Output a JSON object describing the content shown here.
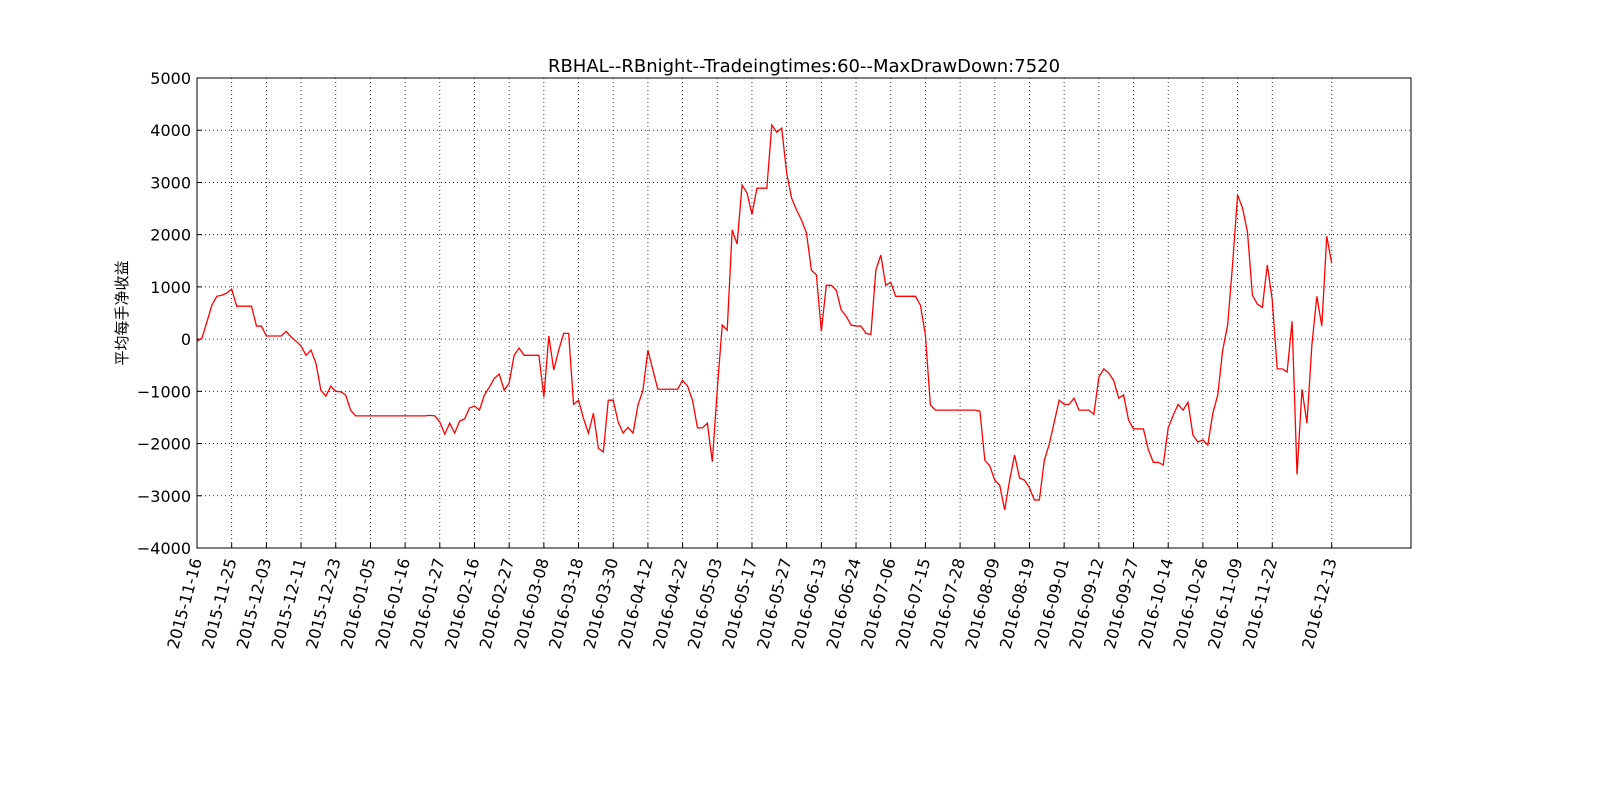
{
  "chart_data": {
    "type": "line",
    "title": "RBHAL--RBnight--Tradeingtimes:60--MaxDrawDown:7520",
    "ylabel": "平均每手净收益",
    "color": "#ff0000",
    "grid": true,
    "x": [
      0,
      1,
      2,
      3,
      4,
      5,
      6,
      7,
      8,
      9,
      10,
      11,
      12,
      13,
      14,
      15,
      16,
      17,
      18,
      19,
      20,
      21,
      22,
      23,
      24,
      25,
      26,
      27,
      28,
      29,
      30,
      31,
      32,
      33,
      34,
      35,
      36,
      37,
      38,
      39,
      40,
      41,
      42,
      43,
      44,
      45,
      46,
      47,
      48,
      49,
      50,
      51,
      52,
      53,
      54,
      55,
      56,
      57,
      58,
      59,
      60,
      61,
      62,
      63,
      64,
      65,
      66,
      67,
      68,
      69,
      70,
      71,
      72,
      73,
      74,
      75,
      76,
      77,
      78,
      79,
      80,
      81,
      82,
      83,
      84,
      85,
      86,
      87,
      88,
      89,
      90,
      91,
      92,
      93,
      94,
      95,
      96,
      97,
      98,
      99,
      100,
      101,
      102,
      103,
      104,
      105,
      106,
      107,
      108,
      109,
      110,
      111,
      112,
      113,
      114,
      115,
      116,
      117,
      118,
      119,
      120,
      121,
      122,
      123,
      124,
      125,
      126,
      127,
      128,
      129,
      130,
      131,
      132,
      133,
      134,
      135,
      136,
      137,
      138,
      139,
      140,
      141,
      142,
      143,
      144,
      145,
      146,
      147,
      148,
      149,
      150,
      151,
      152,
      153,
      154,
      155,
      156,
      157,
      158,
      159,
      160,
      161,
      162,
      163,
      164,
      165,
      166,
      167,
      168,
      169,
      170,
      171,
      172,
      173,
      174,
      175,
      176,
      177,
      178,
      179,
      180,
      181,
      182,
      183,
      184,
      185,
      186,
      187,
      188,
      189,
      190,
      191,
      192,
      193,
      194,
      195,
      196,
      197,
      198,
      199,
      200,
      201,
      202,
      203,
      204,
      205,
      206,
      207,
      208,
      209,
      210,
      211,
      212,
      213,
      214,
      215,
      216,
      217,
      218,
      219,
      220,
      221,
      222,
      223,
      224,
      225,
      226,
      227,
      228,
      229
    ],
    "values": [
      -40,
      20,
      330,
      650,
      820,
      840,
      880,
      960,
      630,
      630,
      630,
      630,
      250,
      250,
      60,
      60,
      60,
      60,
      150,
      40,
      -40,
      -130,
      -310,
      -210,
      -460,
      -980,
      -1090,
      -900,
      -1000,
      -1010,
      -1070,
      -1360,
      -1470,
      -1470,
      -1470,
      -1470,
      -1470,
      -1470,
      -1470,
      -1470,
      -1470,
      -1470,
      -1470,
      -1470,
      -1470,
      -1470,
      -1470,
      -1460,
      -1470,
      -1590,
      -1820,
      -1610,
      -1800,
      -1570,
      -1530,
      -1320,
      -1280,
      -1360,
      -1070,
      -920,
      -750,
      -670,
      -980,
      -840,
      -310,
      -170,
      -310,
      -310,
      -310,
      -310,
      -1110,
      60,
      -590,
      -210,
      110,
      110,
      -1250,
      -1170,
      -1520,
      -1800,
      -1420,
      -2090,
      -2160,
      -1170,
      -1170,
      -1590,
      -1800,
      -1690,
      -1800,
      -1260,
      -980,
      -210,
      -590,
      -960,
      -960,
      -960,
      -960,
      -960,
      -790,
      -900,
      -1170,
      -1700,
      -1700,
      -1610,
      -2350,
      -960,
      270,
      170,
      2090,
      1820,
      2950,
      2800,
      2390,
      2890,
      2890,
      2890,
      4100,
      3960,
      4040,
      3180,
      2700,
      2470,
      2280,
      2030,
      1320,
      1230,
      150,
      1030,
      1030,
      940,
      560,
      440,
      270,
      250,
      250,
      110,
      90,
      1320,
      1610,
      1030,
      1090,
      820,
      820,
      820,
      820,
      820,
      650,
      80,
      -1260,
      -1360,
      -1360,
      -1360,
      -1360,
      -1360,
      -1360,
      -1360,
      -1360,
      -1360,
      -1380,
      -2320,
      -2430,
      -2700,
      -2800,
      -3270,
      -2700,
      -2220,
      -2660,
      -2700,
      -2850,
      -3080,
      -3080,
      -2320,
      -2010,
      -1590,
      -1170,
      -1250,
      -1250,
      -1130,
      -1360,
      -1360,
      -1360,
      -1440,
      -730,
      -570,
      -650,
      -790,
      -1130,
      -1070,
      -1550,
      -1720,
      -1720,
      -1720,
      -2120,
      -2360,
      -2360,
      -2410,
      -1700,
      -1460,
      -1250,
      -1360,
      -1210,
      -1840,
      -1970,
      -1930,
      -2030,
      -1420,
      -1070,
      -210,
      270,
      1440,
      2760,
      2510,
      2050,
      840,
      670,
      610,
      1420,
      750,
      -570,
      -570,
      -630,
      340,
      -2590,
      -960,
      -1610,
      -110,
      820,
      250,
      1970,
      1450
    ],
    "xlim": [
      0,
      245
    ],
    "xticks": [
      {
        "value": 0,
        "label": "2015-11-16"
      },
      {
        "value": 7,
        "label": "2015-11-25"
      },
      {
        "value": 14,
        "label": "2015-12-03"
      },
      {
        "value": 21,
        "label": "2015-12-11"
      },
      {
        "value": 28,
        "label": "2015-12-23"
      },
      {
        "value": 35,
        "label": "2016-01-05"
      },
      {
        "value": 42,
        "label": "2016-01-16"
      },
      {
        "value": 49,
        "label": "2016-01-27"
      },
      {
        "value": 56,
        "label": "2016-02-16"
      },
      {
        "value": 63,
        "label": "2016-02-27"
      },
      {
        "value": 70,
        "label": "2016-03-08"
      },
      {
        "value": 77,
        "label": "2016-03-18"
      },
      {
        "value": 84,
        "label": "2016-03-30"
      },
      {
        "value": 91,
        "label": "2016-04-12"
      },
      {
        "value": 98,
        "label": "2016-04-22"
      },
      {
        "value": 105,
        "label": "2016-05-03"
      },
      {
        "value": 112,
        "label": "2016-05-17"
      },
      {
        "value": 119,
        "label": "2016-05-27"
      },
      {
        "value": 126,
        "label": "2016-06-13"
      },
      {
        "value": 133,
        "label": "2016-06-24"
      },
      {
        "value": 140,
        "label": "2016-07-06"
      },
      {
        "value": 147,
        "label": "2016-07-15"
      },
      {
        "value": 154,
        "label": "2016-07-28"
      },
      {
        "value": 161,
        "label": "2016-08-09"
      },
      {
        "value": 168,
        "label": "2016-08-19"
      },
      {
        "value": 175,
        "label": "2016-09-01"
      },
      {
        "value": 182,
        "label": "2016-09-12"
      },
      {
        "value": 189,
        "label": "2016-09-27"
      },
      {
        "value": 196,
        "label": "2016-10-14"
      },
      {
        "value": 203,
        "label": "2016-10-26"
      },
      {
        "value": 210,
        "label": "2016-11-09"
      },
      {
        "value": 217,
        "label": "2016-11-22"
      },
      {
        "value": 229,
        "label": "2016-12-13"
      }
    ],
    "ylim": [
      -4000,
      5000
    ],
    "yticks": [
      {
        "value": -4000,
        "label": "−4000"
      },
      {
        "value": -3000,
        "label": "−3000"
      },
      {
        "value": -2000,
        "label": "−2000"
      },
      {
        "value": -1000,
        "label": "−1000"
      },
      0,
      1000,
      2000,
      3000,
      4000,
      5000
    ]
  }
}
